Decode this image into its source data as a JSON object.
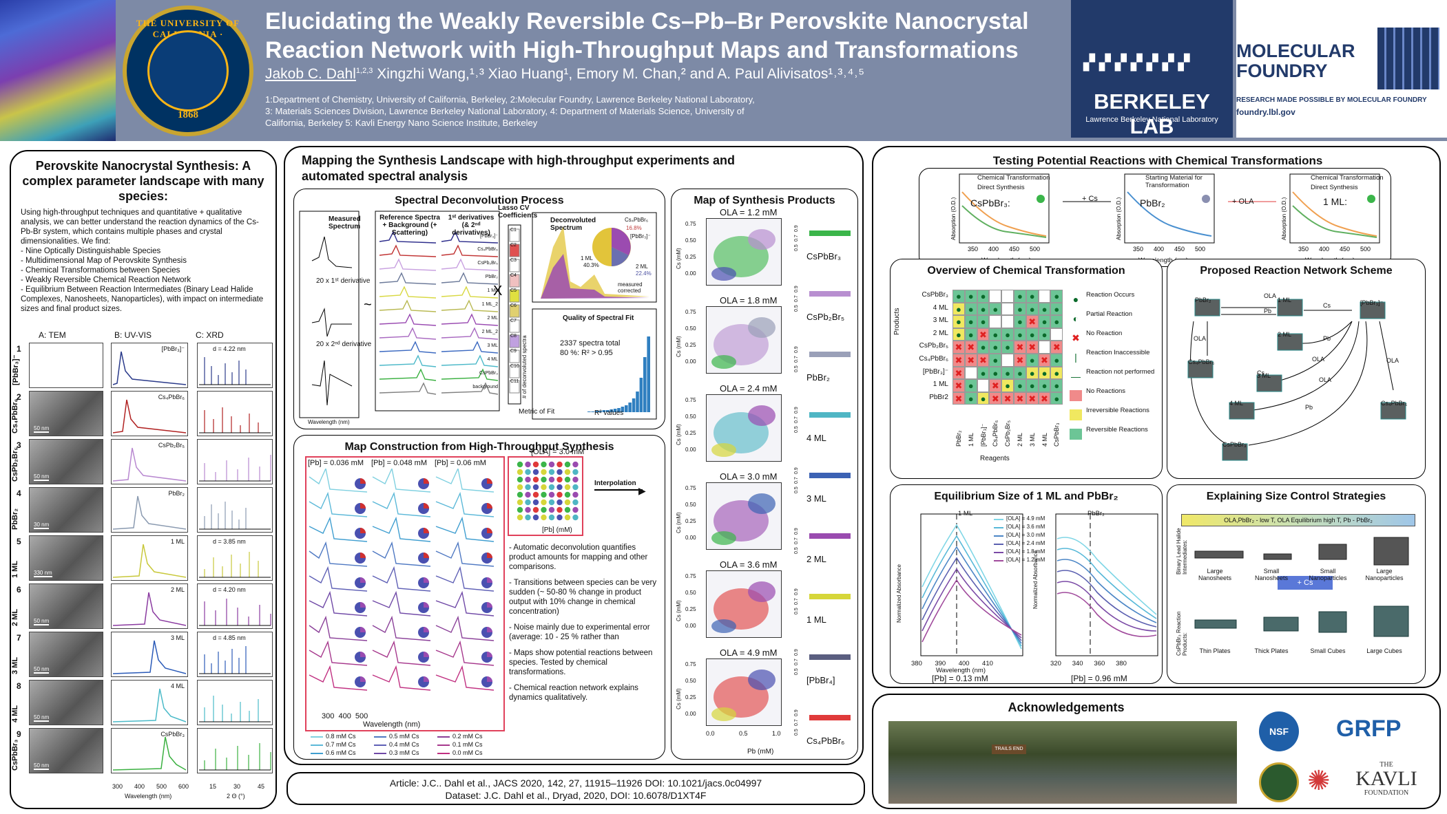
{
  "header": {
    "title_line1": "Elucidating the Weakly Reversible Cs–Pb–Br Perovskite Nanocrystal",
    "title_line2": "Reaction Network with High-Throughput Maps and Transformations",
    "author_first": "Jakob C. Dahl",
    "author_first_sup": "1,2,3",
    "authors_rest": " Xingzhi Wang,¹˒³ Xiao Huang¹, Emory M. Chan,² and A. Paul Alivisatos¹˒³˒⁴˒⁵",
    "affiliations_1": "1:Department of Chemistry, University of California, Berkeley, 2:Molecular Foundry, Lawrence Berkeley National Laboratory,",
    "affiliations_2": "3: Materials Sciences Division, Lawrence Berkeley National Laboratory, 4: Department of Materials Science, University of",
    "affiliations_3": "California, Berkeley 5: Kavli Energy Nano Science Institute, Berkeley",
    "seal_top": "THE UNIVERSITY OF CALIFORNIA · BERKELEY",
    "seal_year": "1868",
    "berkeley_lab": "BERKELEY LAB",
    "berkeley_lab_sub": "Lawrence Berkeley National Laboratory",
    "mf_line1": "MOLECULAR",
    "mf_line2": "FOUNDRY",
    "mf_tagline": "RESEARCH MADE POSSIBLE BY MOLECULAR FOUNDRY",
    "mf_url": "foundry.lbl.gov"
  },
  "left": {
    "title": "Perovskite Nanocrystal Synthesis: A complex parameter landscape with many species:",
    "intro": "Using high-throughput techniques and quantitative + qualitative analysis, we can better understand the reaction dynamics of the Cs-Pb-Br system, which contains multiple phases and crystal dimensionalities. We find:",
    "findings": [
      "- Nine Optically Distinguishable Species",
      "- Multidimensional Map of Perovskite Synthesis",
      "- Chemical Transformations between Species",
      "- Weakly Reversible Chemical Reaction Network",
      "- Equilibrium Between Reaction Intermediates (Binary Lead Halide Complexes, Nanosheets, Nanoparticles), with impact on intermediate sizes and final product sizes."
    ],
    "col_a": "A: TEM",
    "col_b": "B: UV-VIS",
    "col_c": "C: XRD",
    "rows": [
      {
        "num": "1",
        "species": "[PbBr₃]⁻",
        "uv": "[PbBr₃]⁻",
        "xrd": "d = 4.22 nm",
        "scale": ""
      },
      {
        "num": "2",
        "species": "Cs₄PbBr₆",
        "uv": "Cs₄PbBr₆",
        "xrd": "",
        "scale": "50 nm"
      },
      {
        "num": "3",
        "species": "CsPb₂Br₅",
        "uv": "CsPb₂Br₅",
        "xrd": "",
        "scale": "50 nm"
      },
      {
        "num": "4",
        "species": "PbBr₂",
        "uv": "PbBr₂",
        "xrd": "",
        "scale": "30 nm"
      },
      {
        "num": "5",
        "species": "1 ML",
        "uv": "1 ML",
        "xrd": "d = 3.85 nm",
        "scale": "330 nm"
      },
      {
        "num": "6",
        "species": "2 ML",
        "uv": "2 ML",
        "xrd": "d = 4.20 nm",
        "scale": "50 nm"
      },
      {
        "num": "7",
        "species": "3 ML",
        "uv": "3 ML",
        "xrd": "d = 4.85 nm",
        "scale": "50 nm"
      },
      {
        "num": "8",
        "species": "4 ML",
        "uv": "4 ML",
        "xrd": "",
        "scale": "50 nm"
      },
      {
        "num": "9",
        "species": "CsPbBr₃",
        "uv": "CsPbBr₃",
        "xrd": "",
        "scale": "50 nm"
      }
    ],
    "uv_ticks": [
      "300",
      "400",
      "500",
      "600"
    ],
    "uv_xlabel": "Wavelength (nm)",
    "xrd_ticks": [
      "15",
      "30",
      "45"
    ],
    "xrd_xlabel": "2 Θ (°)"
  },
  "middle": {
    "title": "Mapping the Synthesis Landscape with high-throughput experiments and automated spectral analysis",
    "deconv_title": "Spectral Deconvolution Process",
    "measured_spectrum": "Measured Spectrum",
    "first_deriv": "20 x 1ˢᵗ derivative",
    "second_deriv": "20 x 2ⁿᵈ derivative",
    "ref_spectra": "Reference Spectra + Background (+ Scattering)",
    "derivs": "1ˢᵗ derivatives (& 2ⁿᵈ derivatives)",
    "lasso": "Lasso CV Coefficients",
    "deconv_spectrum": "Deconvoluted Spectrum",
    "ref_labels": [
      "[PbBr₃]⁻",
      "Cs₄PbBr₆",
      "CsPb₂Br₅",
      "PbBr₂",
      "1 ML",
      "1 ML_2",
      "2 ML",
      "2 ML_2",
      "3 ML",
      "4 ML",
      "CsPbBr₃",
      "background"
    ],
    "coef_labels": [
      "C1",
      "C2",
      "C3",
      "C4",
      "C5",
      "C6",
      "C7",
      "C8",
      "C9",
      "C10",
      "C11"
    ],
    "pie_labels": [
      "Cs₄PbBr₆",
      "[PbBr₃]⁻",
      "1 ML",
      "2 ML"
    ],
    "pie_values": [
      "16.8%",
      "40.3%",
      "22.4%"
    ],
    "measured_corrected": "measured corrected",
    "quality_title": "Quality of Spectral Fit",
    "spectra_total": "2337 spectra total",
    "r2_line": "80 %: R² > 0.95",
    "hist_ylabel": "# of deconvoluted spectra",
    "hist_xlabel": "R² values",
    "metric": "Metric of Fit",
    "wave_label": "Wavelength (nm)",
    "map_title": "Map Construction from High-Throughput Synthesis",
    "pb_concs": [
      "[Pb] = 0.036 mM",
      "[Pb] = 0.048 mM",
      "[Pb] = 0.06 mM"
    ],
    "ola_label": "[OLA] = 3.0 mM",
    "interp": "Interpolation",
    "cs_axis": "[Cs] (mM)",
    "pb_axis": "[Pb] (mM)",
    "legend": [
      "0.8 mM Cs",
      "0.7 mM Cs",
      "0.6 mM Cs",
      "0.5 mM Cs",
      "0.4 mM Cs",
      "0.3 mM Cs",
      "0.2 mM Cs",
      "0.1 mM Cs",
      "0.0 mM Cs"
    ],
    "legend_colors": [
      "#7fd0e0",
      "#5bb8d8",
      "#3f9ed0",
      "#4e78c2",
      "#5e5fb5",
      "#6f48a6",
      "#8a3f98",
      "#a6378c",
      "#c02f80"
    ],
    "bullets": [
      "- Automatic deconvolution quantifies product amounts for mapping and other comparisons.",
      "- Transitions between species can be very sudden (~ 50-80 % change in product output with 10% change in chemical concentration)",
      "- Noise mainly due to experimental error (average: 10 - 25 % rather than",
      "- Maps show potential reactions between species. Tested by chemical transformations.",
      "- Chemical reaction network explains dynamics qualitatively."
    ],
    "products_title": "Map of Synthesis Products",
    "ola_levels": [
      "OLA  = 1.2 mM",
      "OLA  = 1.8 mM",
      "OLA  = 2.4 mM",
      "OLA  = 3.0 mM",
      "OLA  = 3.6 mM",
      "OLA  = 4.9 mM"
    ],
    "products": [
      "CsPbBr₃",
      "CsPb₂Br₅",
      "PbBr₂",
      "4 ML",
      "3 ML",
      "2 ML",
      "1 ML",
      "[PbBr₄]",
      "Cs₄PbBr₆"
    ],
    "product_colors": [
      "#3bb54a",
      "#b88fd0",
      "#9aa0b8",
      "#4fb6c4",
      "#3c62b4",
      "#9a4bb0",
      "#d6d63a",
      "#5a5e80",
      "#e03a3a"
    ],
    "map_xlabel": "Pb (mM)",
    "map_ylabel": "Cs (mM)",
    "cbar_ticks": [
      "0.5",
      "0.7",
      "0.9"
    ],
    "map_yticks": [
      "0.75",
      "0.50",
      "0.25",
      "0.00"
    ],
    "map_xticks": [
      "0.0",
      "0.5",
      "1.0"
    ],
    "article": "Article: J.C.. Dahl et al., JACS  2020, 142, 27, 11915–11926 DOI: 10.1021/jacs.0c04997",
    "dataset": "Dataset: J.C. Dahl et al., Dryad, 2020, DOI: 10.6078/D1XT4F"
  },
  "right": {
    "test_title": "Testing Potential Reactions with Chemical Transformations",
    "tr1_legend": [
      "Chemical Transformation",
      "Direct Synthesis"
    ],
    "tr1_label": "CsPbBr₃:",
    "tr_plus_cs": "+ Cs",
    "tr2_legend": [
      "Starting Material for Transformation"
    ],
    "tr2_label": "PbBr₂",
    "tr_plus_ola": "+ OLA",
    "tr3_legend": [
      "Chemical Transformation",
      "Direct Synthesis"
    ],
    "tr3_label": "1 ML:",
    "tr_ylabel": "Absorption (O.D.)",
    "tr_xlabel": "Wavelength (nm)",
    "tr_xticks": [
      "350",
      "400",
      "450",
      "500"
    ],
    "overview_title": "Overview of Chemical Transformation",
    "grid_rows": [
      "CsPbBr₃",
      "4 ML",
      "3 ML",
      "2 ML",
      "CsPb₂Br₅",
      "Cs₄PbBr₆",
      "[PbBr₃]⁻",
      "1 ML",
      "PbBr2"
    ],
    "grid_cols": [
      "PbBr₂",
      "1 ML",
      "[PbBr₃]⁻",
      "Cs₄PbBr₆",
      "CsPb₂Br₅",
      "2 ML",
      "3 ML",
      "4 ML",
      "CsPbBr₃"
    ],
    "products_axis": "Products",
    "reagents_axis": "Reagents",
    "grid_legend": [
      "Reaction Occurs",
      "Partial Reaction",
      "No Reaction",
      "Reaction Inaccessible",
      "Reaction not performed",
      "No Reactions",
      "Irreversible Reactions",
      "Reversible Reactions"
    ],
    "network_title": "Proposed Reaction Network Scheme",
    "net_nodes": [
      "PbBr₂",
      "1 ML",
      "[PbBr₃]⁻",
      "Cs₄PbBr₆",
      "2 ML",
      "3 ML",
      "4 ML",
      "CsPbBr₃",
      "Cs₄PbBr₆"
    ],
    "net_edges": [
      "OLA",
      "Pb",
      "Cs",
      "OLA",
      "Pb",
      "OLA",
      "Cs",
      "OLA",
      "Pb",
      "OLA"
    ],
    "eq_title": "Equilibrium Size of  1 ML and PbBr₂",
    "eq_legend": [
      "[OLA] = 4.9 mM",
      "[OLA] = 3.6 mM",
      "[OLA] = 3.0 mM",
      "[OLA] = 2.4 mM",
      "[OLA] = 1.8 mM",
      "[OLA] = 1.2 mM"
    ],
    "eq_colors": [
      "#7fd6e6",
      "#56b8d8",
      "#4b86c6",
      "#5a5fb0",
      "#7a4aa6",
      "#a04a9c"
    ],
    "eq_1ml": "1 ML",
    "eq_pbbr2": "PbBr₂",
    "eq_ylabel": "Normalized Absorbance",
    "eq_xlabel": "Wavelength (nm)",
    "eq_xticks1": [
      "380",
      "390",
      "400",
      "410"
    ],
    "eq_xticks2": [
      "320",
      "340",
      "360",
      "380"
    ],
    "eq_pb1": "[Pb] = 0.13 mM",
    "eq_pb2": "[Pb] = 0.96 mM",
    "size_title": "Explaining Size Control Strategies",
    "size_arrow": "OLA,PbBr₂ - low T, OLA        Equilibrium        high T, Pb - PbBr₂",
    "size_row1_label": "Binary Lead Halide Intermediates:",
    "size_row1": [
      "Large Nanosheets",
      "Small Nanosheets",
      "Small Nanoparticles",
      "Large Nanoparticles"
    ],
    "size_plus_cs": "+ Cs",
    "size_row2_label": "CsPbBr₃ Reaction Products:",
    "size_row2": [
      "Thin Plates",
      "Thick Plates",
      "Small Cubes",
      "Large Cubes"
    ],
    "ack_title": "Acknowledgements",
    "ack_sign": "TRAILS END",
    "logo_nsf": "NSF",
    "logo_grfp": "GRFP",
    "logo_kavli_the": "THE",
    "logo_kavli": "KAVLI",
    "logo_kavli_foundation": "FOUNDATION"
  }
}
